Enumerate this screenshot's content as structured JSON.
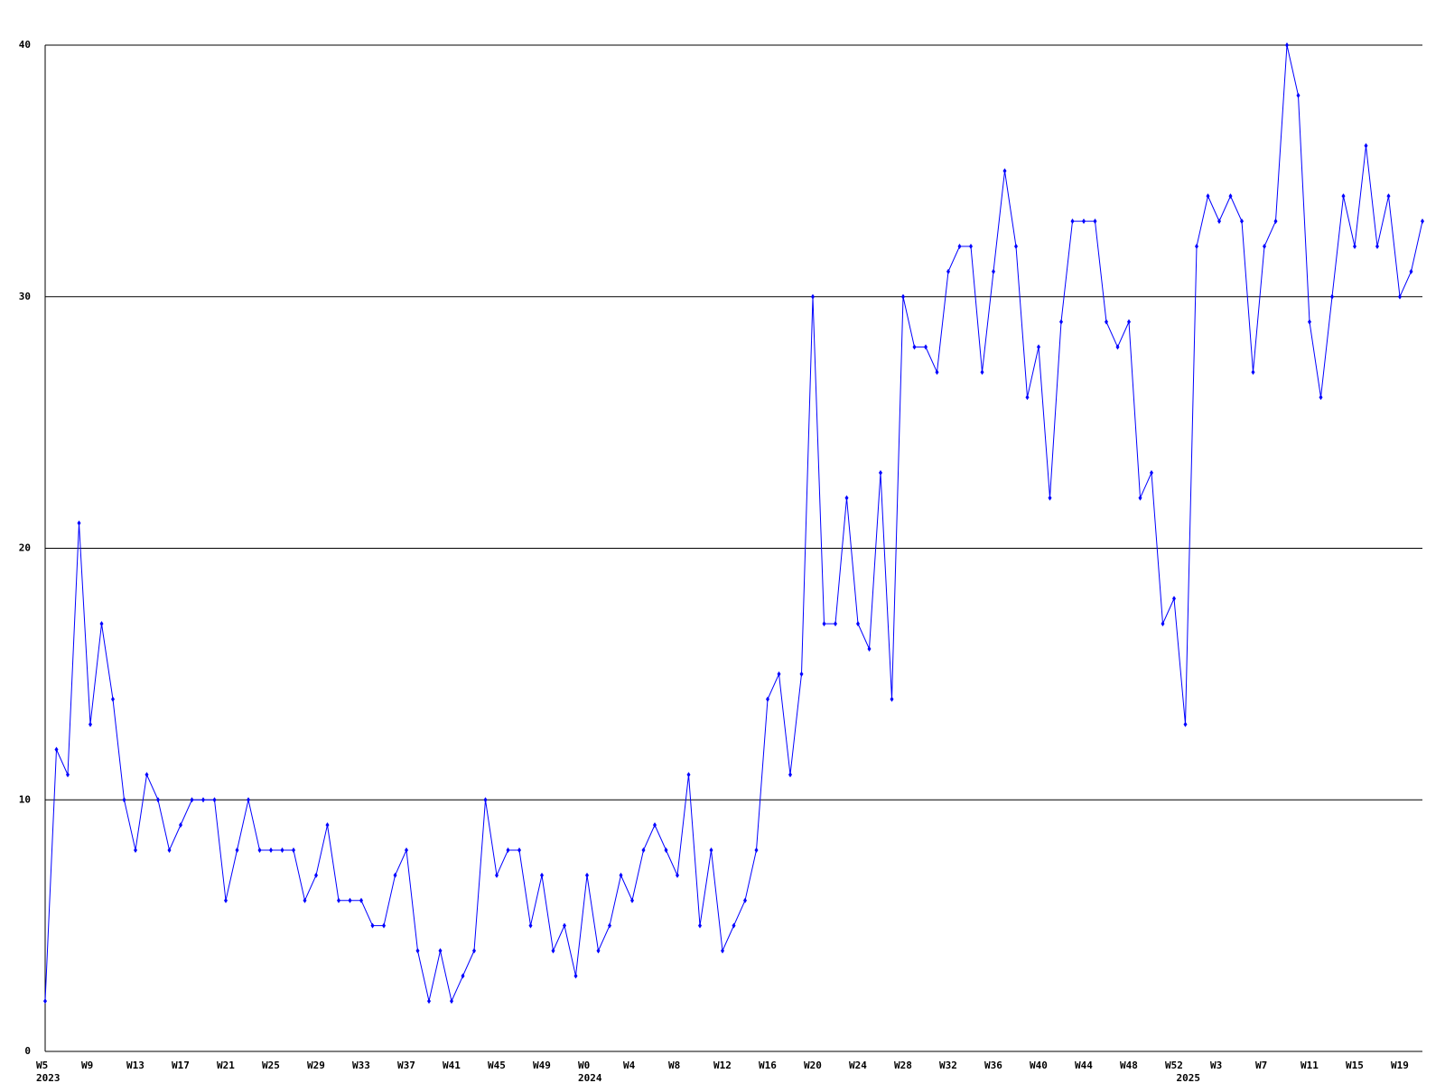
{
  "chart_data": {
    "type": "line",
    "categories": [
      "W5",
      null,
      null,
      null,
      "W9",
      null,
      null,
      null,
      "W13",
      null,
      null,
      null,
      "W17",
      null,
      null,
      null,
      "W21",
      null,
      null,
      null,
      "W25",
      null,
      null,
      null,
      "W29",
      null,
      null,
      null,
      "W33",
      null,
      null,
      null,
      "W37",
      null,
      null,
      null,
      "W41",
      null,
      null,
      null,
      "W45",
      null,
      null,
      null,
      "W49",
      null,
      null,
      null,
      "W0",
      null,
      null,
      null,
      "W4",
      null,
      null,
      null,
      "W8",
      null,
      null,
      null,
      "W12",
      null,
      null,
      null,
      "W16",
      null,
      null,
      null,
      "W20",
      null,
      null,
      null,
      "W24",
      null,
      null,
      null,
      "W28",
      null,
      null,
      null,
      "W32",
      null,
      null,
      null,
      "W36",
      null,
      null,
      null,
      "W40",
      null,
      null,
      null,
      "W44",
      null,
      null,
      null,
      "W48",
      null,
      null,
      null,
      "W52",
      null,
      null,
      null,
      "W3",
      null,
      null,
      null,
      "W7",
      null,
      null,
      null,
      "W11",
      null,
      null,
      null,
      "W15",
      null,
      null,
      null,
      "W19",
      null,
      null
    ],
    "x_years": [
      "2023",
      null,
      null,
      null,
      null,
      null,
      null,
      null,
      null,
      null,
      null,
      null,
      null,
      null,
      null,
      null,
      null,
      null,
      null,
      null,
      null,
      null,
      null,
      null,
      null,
      null,
      null,
      null,
      null,
      null,
      null,
      null,
      null,
      null,
      null,
      null,
      null,
      null,
      null,
      null,
      null,
      null,
      null,
      null,
      null,
      null,
      null,
      null,
      "2024",
      null,
      null,
      null,
      null,
      null,
      null,
      null,
      null,
      null,
      null,
      null,
      null,
      null,
      null,
      null,
      null,
      null,
      null,
      null,
      null,
      null,
      null,
      null,
      null,
      null,
      null,
      null,
      null,
      null,
      null,
      null,
      null,
      null,
      null,
      null,
      null,
      null,
      null,
      null,
      null,
      null,
      null,
      null,
      null,
      null,
      null,
      null,
      null,
      null,
      null,
      null,
      null,
      "2025",
      null,
      null,
      null,
      null,
      null,
      null,
      null,
      null,
      null,
      null,
      null,
      null,
      null,
      null,
      null,
      null,
      null,
      null,
      null,
      null,
      null
    ],
    "series": [
      {
        "color": "#0000ff",
        "values": [
          2,
          12,
          11,
          21,
          13,
          17,
          14,
          10,
          8,
          11,
          10,
          8,
          9,
          10,
          10,
          10,
          6,
          8,
          10,
          8,
          8,
          8,
          8,
          6,
          7,
          9,
          6,
          6,
          6,
          5,
          5,
          7,
          8,
          4,
          2,
          4,
          2,
          3,
          4,
          10,
          7,
          8,
          8,
          5,
          7,
          4,
          5,
          3,
          7,
          4,
          5,
          7,
          6,
          8,
          9,
          8,
          7,
          11,
          5,
          8,
          4,
          5,
          6,
          8,
          14,
          15,
          11,
          15,
          30,
          17,
          17,
          22,
          17,
          16,
          23,
          14,
          30,
          28,
          28,
          27,
          31,
          32,
          32,
          27,
          31,
          35,
          32,
          26,
          28,
          22,
          29,
          33,
          33,
          33,
          29,
          28,
          29,
          22,
          23,
          17,
          18,
          13,
          32,
          34,
          33,
          34,
          33,
          27,
          32,
          33,
          40,
          38,
          29,
          26,
          30,
          34,
          32,
          36,
          32,
          34,
          30,
          31,
          33
        ]
      }
    ],
    "ylim": [
      0,
      40
    ],
    "yticks": [
      0,
      10,
      20,
      30,
      40
    ],
    "grid": true
  }
}
